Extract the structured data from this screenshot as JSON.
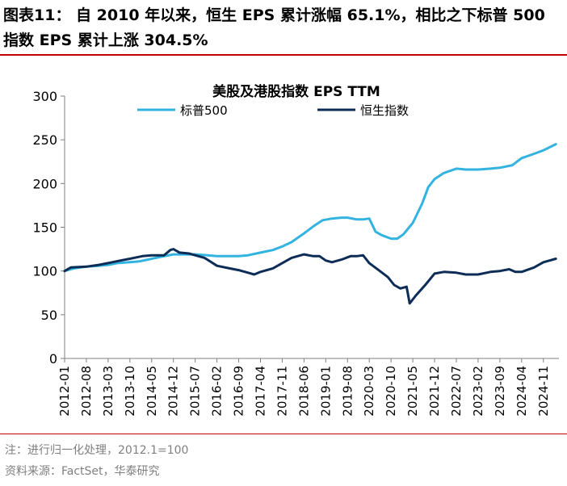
{
  "figure": {
    "title": "图表11： 自 2010 年以来，恒生 EPS 累计涨幅 65.1%，相比之下标普 500 指数 EPS 累计上涨 304.5%",
    "note": "注：进行归一化处理，2012.1=100",
    "source": "资料来源：FactSet，华泰研究"
  },
  "colors": {
    "sp500": "#33b3e0",
    "hsi": "#0d2d57",
    "rule": "#c00000"
  },
  "chart_data": {
    "type": "line",
    "title": "美股及港股指数 EPS TTM",
    "ylim": [
      0,
      300
    ],
    "yticks": [
      0,
      50,
      100,
      150,
      200,
      250,
      300
    ],
    "xlim": [
      "2012-01",
      "2025-04"
    ],
    "xticks": [
      "2012-01",
      "2012-08",
      "2013-03",
      "2013-10",
      "2014-05",
      "2014-12",
      "2015-07",
      "2016-02",
      "2016-09",
      "2017-04",
      "2017-11",
      "2018-06",
      "2019-01",
      "2019-08",
      "2020-03",
      "2020-10",
      "2021-05",
      "2021-12",
      "2022-07",
      "2023-02",
      "2023-09",
      "2024-04",
      "2024-11"
    ],
    "legend": "top",
    "grid": false,
    "series": [
      {
        "name": "标普500",
        "color_key": "sp500",
        "points": [
          [
            "2012-01",
            100
          ],
          [
            "2012-04",
            103
          ],
          [
            "2012-08",
            105
          ],
          [
            "2012-12",
            106
          ],
          [
            "2013-03",
            107
          ],
          [
            "2013-06",
            109
          ],
          [
            "2013-10",
            110
          ],
          [
            "2014-01",
            111
          ],
          [
            "2014-05",
            114
          ],
          [
            "2014-09",
            117
          ],
          [
            "2014-12",
            119
          ],
          [
            "2015-03",
            119
          ],
          [
            "2015-07",
            119
          ],
          [
            "2015-11",
            118
          ],
          [
            "2016-02",
            117
          ],
          [
            "2016-06",
            117
          ],
          [
            "2016-09",
            117
          ],
          [
            "2016-12",
            118
          ],
          [
            "2017-04",
            121
          ],
          [
            "2017-08",
            124
          ],
          [
            "2017-11",
            128
          ],
          [
            "2018-02",
            133
          ],
          [
            "2018-06",
            143
          ],
          [
            "2018-09",
            151
          ],
          [
            "2018-12",
            158
          ],
          [
            "2019-03",
            160
          ],
          [
            "2019-06",
            161
          ],
          [
            "2019-08",
            161
          ],
          [
            "2019-11",
            159
          ],
          [
            "2020-01",
            159
          ],
          [
            "2020-03",
            160
          ],
          [
            "2020-05",
            145
          ],
          [
            "2020-07",
            141
          ],
          [
            "2020-10",
            137
          ],
          [
            "2020-12",
            137
          ],
          [
            "2021-02",
            142
          ],
          [
            "2021-05",
            155
          ],
          [
            "2021-08",
            177
          ],
          [
            "2021-10",
            196
          ],
          [
            "2021-12",
            205
          ],
          [
            "2022-03",
            212
          ],
          [
            "2022-07",
            217
          ],
          [
            "2022-10",
            216
          ],
          [
            "2023-02",
            216
          ],
          [
            "2023-06",
            217
          ],
          [
            "2023-09",
            218
          ],
          [
            "2024-01",
            221
          ],
          [
            "2024-04",
            229
          ],
          [
            "2024-08",
            234
          ],
          [
            "2024-11",
            238
          ],
          [
            "2025-03",
            245
          ]
        ]
      },
      {
        "name": "恒生指数",
        "color_key": "hsi",
        "points": [
          [
            "2012-01",
            100
          ],
          [
            "2012-03",
            104
          ],
          [
            "2012-08",
            105
          ],
          [
            "2012-12",
            107
          ],
          [
            "2013-03",
            109
          ],
          [
            "2013-07",
            112
          ],
          [
            "2013-10",
            114
          ],
          [
            "2014-02",
            117
          ],
          [
            "2014-05",
            118
          ],
          [
            "2014-09",
            118
          ],
          [
            "2014-11",
            124
          ],
          [
            "2014-12",
            125
          ],
          [
            "2015-02",
            121
          ],
          [
            "2015-05",
            120
          ],
          [
            "2015-07",
            118
          ],
          [
            "2015-10",
            115
          ],
          [
            "2016-02",
            106
          ],
          [
            "2016-06",
            103
          ],
          [
            "2016-09",
            101
          ],
          [
            "2016-12",
            98
          ],
          [
            "2017-02",
            96
          ],
          [
            "2017-04",
            99
          ],
          [
            "2017-08",
            103
          ],
          [
            "2017-11",
            109
          ],
          [
            "2018-02",
            115
          ],
          [
            "2018-06",
            119
          ],
          [
            "2018-09",
            117
          ],
          [
            "2018-11",
            117
          ],
          [
            "2019-01",
            112
          ],
          [
            "2019-03",
            110
          ],
          [
            "2019-06",
            113
          ],
          [
            "2019-09",
            117
          ],
          [
            "2019-11",
            117
          ],
          [
            "2020-01",
            118
          ],
          [
            "2020-03",
            109
          ],
          [
            "2020-06",
            101
          ],
          [
            "2020-09",
            93
          ],
          [
            "2020-11",
            84
          ],
          [
            "2021-01",
            80
          ],
          [
            "2021-03",
            82
          ],
          [
            "2021-04",
            63
          ],
          [
            "2021-06",
            72
          ],
          [
            "2021-09",
            84
          ],
          [
            "2021-12",
            97
          ],
          [
            "2022-03",
            99
          ],
          [
            "2022-07",
            98
          ],
          [
            "2022-10",
            96
          ],
          [
            "2023-02",
            96
          ],
          [
            "2023-06",
            99
          ],
          [
            "2023-09",
            100
          ],
          [
            "2023-12",
            102
          ],
          [
            "2024-02",
            99
          ],
          [
            "2024-04",
            99
          ],
          [
            "2024-08",
            104
          ],
          [
            "2024-11",
            110
          ],
          [
            "2025-01",
            112
          ],
          [
            "2025-03",
            114
          ]
        ]
      }
    ]
  }
}
